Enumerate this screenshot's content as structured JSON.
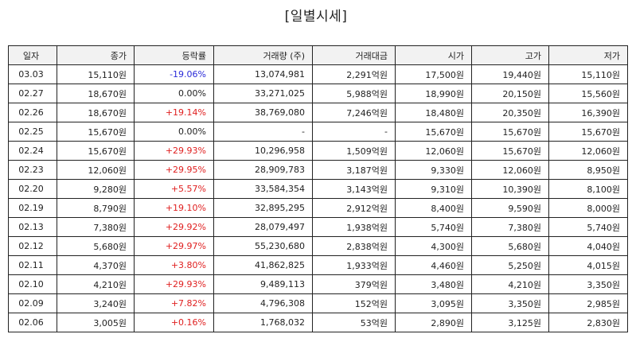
{
  "title": "[일별시세]",
  "table": {
    "headers": [
      "일자",
      "종가",
      "등락률",
      "거래량 (주)",
      "거래대금",
      "시가",
      "고가",
      "저가"
    ],
    "rows": [
      [
        "03.03",
        "15,110원",
        "-19.06%",
        "13,074,981",
        "2,291억원",
        "17,500원",
        "19,440원",
        "15,110원"
      ],
      [
        "02.27",
        "18,670원",
        "0.00%",
        "33,271,025",
        "5,988억원",
        "18,990원",
        "20,150원",
        "15,560원"
      ],
      [
        "02.26",
        "18,670원",
        "+19.14%",
        "38,769,080",
        "7,246억원",
        "18,480원",
        "20,350원",
        "16,390원"
      ],
      [
        "02.25",
        "15,670원",
        "0.00%",
        "-",
        "-",
        "15,670원",
        "15,670원",
        "15,670원"
      ],
      [
        "02.24",
        "15,670원",
        "+29.93%",
        "10,296,958",
        "1,509억원",
        "12,060원",
        "15,670원",
        "12,060원"
      ],
      [
        "02.23",
        "12,060원",
        "+29.95%",
        "28,909,783",
        "3,187억원",
        "9,330원",
        "12,060원",
        "8,950원"
      ],
      [
        "02.20",
        "9,280원",
        "+5.57%",
        "33,584,354",
        "3,143억원",
        "9,310원",
        "10,390원",
        "8,100원"
      ],
      [
        "02.19",
        "8,790원",
        "+19.10%",
        "32,895,295",
        "2,912억원",
        "8,400원",
        "9,590원",
        "8,000원"
      ],
      [
        "02.13",
        "7,380원",
        "+29.92%",
        "28,079,497",
        "1,938억원",
        "5,740원",
        "7,380원",
        "5,740원"
      ],
      [
        "02.12",
        "5,680원",
        "+29.97%",
        "55,230,680",
        "2,838억원",
        "4,300원",
        "5,680원",
        "4,040원"
      ],
      [
        "02.11",
        "4,370원",
        "+3.80%",
        "41,862,825",
        "1,933억원",
        "4,460원",
        "5,250원",
        "4,015원"
      ],
      [
        "02.10",
        "4,210원",
        "+29.93%",
        "9,489,113",
        "379억원",
        "3,480원",
        "4,210원",
        "3,350원"
      ],
      [
        "02.09",
        "3,240원",
        "+7.82%",
        "4,796,308",
        "152억원",
        "3,095원",
        "3,350원",
        "2,985원"
      ],
      [
        "02.06",
        "3,005원",
        "+0.16%",
        "1,768,032",
        "53억원",
        "2,890원",
        "3,125원",
        "2,830원"
      ]
    ]
  },
  "colors": {
    "rise": "#e02020",
    "fall": "#2a2ad8",
    "flat": "#222222"
  }
}
